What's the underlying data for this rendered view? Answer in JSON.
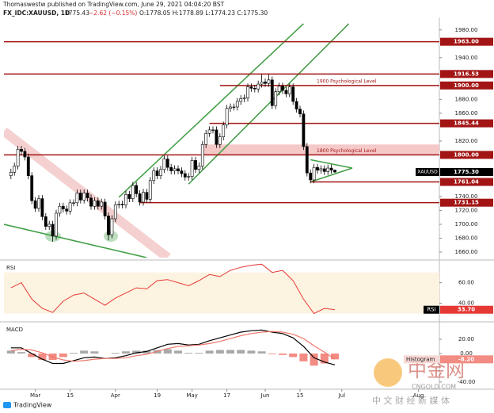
{
  "header": {
    "published": "Thomaswestw published on TradingView.com, June 29, 2021 04:04:20 BST",
    "symbol": "FX_IDC:XAUUSD, 1D",
    "price": "1775.43",
    "change": "−2.62 (−0.15%)",
    "ohlc": "O:1778.05 H:1778.89 L:1774.23 C:1775.30"
  },
  "footer": {
    "brand": "TradingView"
  },
  "watermark": {
    "logo": "中金网",
    "site": "CNGOLD.COM",
    "slogan": "中 文 财 经 新 媒 体"
  },
  "chart_data": [
    {
      "type": "candlestick",
      "xlim": [
        -2,
        123
      ],
      "ylim": [
        1652,
        1998
      ],
      "yticks": [
        {
          "value": 1980,
          "label": "1980.00"
        },
        {
          "value": 1940,
          "label": "1940.00"
        },
        {
          "value": 1880,
          "label": "1880.00"
        },
        {
          "value": 1860,
          "label": "1860.00"
        },
        {
          "value": 1820,
          "label": "1820.00"
        },
        {
          "value": 1740,
          "label": "1740.00"
        },
        {
          "value": 1720,
          "label": "1720.00"
        },
        {
          "value": 1700,
          "label": "1700.00"
        },
        {
          "value": 1680,
          "label": "1680.00"
        },
        {
          "value": 1660,
          "label": "1660.00"
        }
      ],
      "up_color": "#ffffff",
      "down_color": "#000000",
      "open": [
        1770,
        1775,
        1784,
        1808,
        1805,
        1797,
        1770,
        1734,
        1723,
        1737,
        1711,
        1697,
        1700,
        1683,
        1716,
        1726,
        1722,
        1719,
        1731,
        1731,
        1745,
        1735,
        1745,
        1738,
        1726,
        1734,
        1726,
        1732,
        1712,
        1685,
        1708,
        1728,
        1729,
        1728,
        1743,
        1737,
        1756,
        1744,
        1732,
        1746,
        1736,
        1763,
        1777,
        1770,
        1779,
        1794,
        1782,
        1777,
        1780,
        1777,
        1773,
        1768,
        1769,
        1792,
        1779,
        1784,
        1815,
        1831,
        1836,
        1836,
        1815,
        1826,
        1843,
        1867,
        1869,
        1869,
        1877,
        1881,
        1882,
        1898,
        1896,
        1895,
        1902,
        1905,
        1903,
        1908,
        1871,
        1891,
        1899,
        1893,
        1888,
        1898,
        1877,
        1866,
        1859,
        1812,
        1774,
        1764,
        1782,
        1778,
        1780,
        1776,
        1781,
        1778.05
      ],
      "high": [
        1780,
        1789,
        1813,
        1813,
        1810,
        1802,
        1775,
        1739,
        1742,
        1742,
        1716,
        1705,
        1705,
        1721,
        1731,
        1731,
        1727,
        1736,
        1736,
        1750,
        1750,
        1750,
        1750,
        1743,
        1739,
        1739,
        1737,
        1737,
        1717,
        1713,
        1733,
        1734,
        1734,
        1748,
        1748,
        1761,
        1761,
        1749,
        1751,
        1751,
        1768,
        1782,
        1782,
        1784,
        1799,
        1799,
        1787,
        1785,
        1785,
        1782,
        1778,
        1774,
        1797,
        1797,
        1789,
        1820,
        1836,
        1841,
        1841,
        1841,
        1831,
        1848,
        1872,
        1874,
        1874,
        1882,
        1886,
        1887,
        1903,
        1903,
        1901,
        1907,
        1916,
        1910,
        1916,
        1913,
        1896,
        1904,
        1904,
        1898,
        1903,
        1903,
        1882,
        1871,
        1864,
        1817,
        1779,
        1787,
        1787,
        1785,
        1785,
        1786,
        1786,
        1778.89
      ],
      "low": [
        1765,
        1770,
        1779,
        1800,
        1792,
        1765,
        1729,
        1718,
        1718,
        1706,
        1692,
        1692,
        1675,
        1678,
        1711,
        1717,
        1714,
        1714,
        1726,
        1726,
        1730,
        1730,
        1733,
        1721,
        1721,
        1721,
        1721,
        1707,
        1677,
        1680,
        1703,
        1723,
        1723,
        1723,
        1732,
        1732,
        1739,
        1727,
        1727,
        1731,
        1731,
        1758,
        1765,
        1765,
        1774,
        1777,
        1772,
        1772,
        1772,
        1768,
        1763,
        1763,
        1764,
        1774,
        1774,
        1779,
        1810,
        1826,
        1831,
        1810,
        1810,
        1821,
        1838,
        1862,
        1864,
        1864,
        1872,
        1876,
        1877,
        1891,
        1890,
        1890,
        1897,
        1898,
        1898,
        1866,
        1866,
        1886,
        1888,
        1883,
        1883,
        1872,
        1861,
        1854,
        1807,
        1769,
        1759,
        1759,
        1773,
        1773,
        1771,
        1771,
        1773,
        1774.23
      ],
      "close": [
        1775,
        1784,
        1808,
        1805,
        1797,
        1770,
        1734,
        1723,
        1737,
        1711,
        1697,
        1700,
        1683,
        1716,
        1726,
        1722,
        1719,
        1731,
        1731,
        1745,
        1735,
        1745,
        1738,
        1726,
        1734,
        1726,
        1732,
        1712,
        1685,
        1708,
        1728,
        1729,
        1728,
        1743,
        1737,
        1756,
        1744,
        1732,
        1746,
        1736,
        1763,
        1777,
        1770,
        1779,
        1794,
        1782,
        1777,
        1780,
        1777,
        1773,
        1768,
        1769,
        1792,
        1779,
        1784,
        1815,
        1831,
        1836,
        1836,
        1815,
        1826,
        1843,
        1867,
        1869,
        1869,
        1877,
        1881,
        1882,
        1898,
        1896,
        1895,
        1902,
        1905,
        1903,
        1908,
        1871,
        1891,
        1899,
        1893,
        1888,
        1898,
        1877,
        1866,
        1859,
        1812,
        1774,
        1764,
        1782,
        1778,
        1780,
        1776,
        1781,
        1778,
        1775.3
      ],
      "level_color": "#a31515",
      "levels": [
        {
          "value": 1963,
          "label": "1963.00",
          "start": -2
        },
        {
          "value": 1916.53,
          "label": "1916.53",
          "start": -2
        },
        {
          "value": 1900,
          "label": "1900.00",
          "start": 60,
          "note": "1900 Psychological Level"
        },
        {
          "value": 1845.44,
          "label": "1845.44",
          "start": 57
        },
        {
          "value": 1800,
          "label": "1800.00",
          "start": -2,
          "note": "1800 Psychological Level"
        },
        {
          "value": 1761.04,
          "label": "1761.04",
          "start": 86
        },
        {
          "value": 1731.15,
          "label": "1731.15",
          "start": 37
        }
      ],
      "zone": {
        "from": 1800,
        "to": 1815,
        "start": 55,
        "color": "#f6c9c9"
      },
      "trendlines": [
        {
          "x": [
            -2,
            45
          ],
          "y": [
            1834,
            1652
          ],
          "color": "#f2c4c4",
          "style": "band"
        },
        {
          "x": [
            31,
            84
          ],
          "y": [
            1739,
            1989
          ],
          "color": "#43a047"
        },
        {
          "x": [
            51,
            97
          ],
          "y": [
            1758,
            1989
          ],
          "color": "#43a047"
        },
        {
          "x": [
            -2,
            39
          ],
          "y": [
            1700,
            1652
          ],
          "color": "#43a047"
        },
        {
          "x": [
            86,
            98
          ],
          "y": [
            1793,
            1781
          ],
          "color": "#43a047"
        },
        {
          "x": [
            86,
            98
          ],
          "y": [
            1761,
            1781
          ],
          "color": "#43a047"
        }
      ],
      "last_price": {
        "symbol": "XAUUSD",
        "label": "1775.30"
      }
    },
    {
      "type": "line",
      "title": "RSI",
      "xlim": [
        -2,
        123
      ],
      "ylim": [
        25,
        79
      ],
      "yticks": [
        {
          "value": 60,
          "label": "60.00"
        },
        {
          "value": 40,
          "label": "40.00"
        }
      ],
      "band": [
        30,
        70
      ],
      "band_color": "#fdf3e1",
      "x": [
        0,
        3,
        6,
        9,
        12,
        15,
        18,
        21,
        24,
        27,
        30,
        33,
        36,
        39,
        42,
        45,
        48,
        51,
        54,
        57,
        60,
        63,
        66,
        69,
        72,
        75,
        78,
        81,
        84,
        87,
        90,
        93
      ],
      "series": [
        {
          "name": "RSI",
          "color": "#e53935",
          "values": [
            55,
            60,
            44,
            35,
            31,
            42,
            48,
            50,
            44,
            38,
            45,
            50,
            55,
            54,
            62,
            63,
            60,
            57,
            62,
            68,
            66,
            72,
            75,
            77,
            78,
            70,
            72,
            62,
            44,
            30,
            35,
            33.7
          ],
          "value_labels": [
            null,
            null,
            null,
            null,
            null,
            null,
            null,
            null,
            null,
            null,
            null,
            null,
            null,
            null,
            null,
            null,
            null,
            null,
            null,
            null,
            null,
            null,
            null,
            null,
            null,
            null,
            null,
            null,
            null,
            null,
            null,
            "33.70"
          ]
        }
      ]
    },
    {
      "type": "macd",
      "title": "MACD",
      "xlim": [
        -2,
        123
      ],
      "ylim": [
        -49,
        40
      ],
      "yticks": [
        {
          "value": 20,
          "label": "20.00"
        },
        {
          "value": 0,
          "label": "0.00"
        },
        {
          "value": -40,
          "label": "-40.00"
        }
      ],
      "xticks": [
        {
          "value": 7,
          "label": "Mar"
        },
        {
          "value": 17,
          "label": "15"
        },
        {
          "value": 30,
          "label": "Apr"
        },
        {
          "value": 42,
          "label": "19"
        },
        {
          "value": 52,
          "label": "May"
        },
        {
          "value": 62,
          "label": "17"
        },
        {
          "value": 73,
          "label": "Jun"
        },
        {
          "value": 83,
          "label": "15"
        },
        {
          "value": 95,
          "label": "Jul"
        },
        {
          "value": 117,
          "label": "Aug"
        }
      ],
      "x": [
        0,
        3,
        6,
        9,
        12,
        15,
        18,
        21,
        24,
        27,
        30,
        33,
        36,
        39,
        42,
        45,
        48,
        51,
        54,
        57,
        60,
        63,
        66,
        69,
        72,
        75,
        78,
        81,
        84,
        87,
        90,
        93
      ],
      "series": [
        {
          "name": "Histogram",
          "type": "bar",
          "color": "#a8a8a8",
          "negative_color": "#f28b82",
          "values": [
            4,
            2,
            -5,
            -9,
            -9,
            -5,
            1,
            4,
            3,
            0,
            1,
            3,
            4,
            4,
            5,
            6,
            4,
            1,
            1,
            4,
            5,
            5,
            5,
            4,
            3,
            -1,
            -2,
            -5,
            -11,
            -17,
            -14,
            -8.2
          ],
          "value_labels": [
            null,
            null,
            null,
            null,
            null,
            null,
            null,
            null,
            null,
            null,
            null,
            null,
            null,
            null,
            null,
            null,
            null,
            null,
            null,
            null,
            null,
            null,
            null,
            null,
            null,
            null,
            null,
            null,
            null,
            null,
            null,
            "-8.20"
          ]
        },
        {
          "type": "line",
          "color": "#000000",
          "values": [
            8,
            8,
            0,
            -8,
            -14,
            -14,
            -10,
            -6,
            -5,
            -7,
            -6,
            -3,
            1,
            3,
            8,
            13,
            14,
            12,
            13,
            18,
            22,
            26,
            30,
            32,
            33,
            30,
            28,
            22,
            10,
            -6,
            -12,
            -16
          ]
        },
        {
          "type": "line",
          "color": "#f0776b",
          "values": [
            4,
            6,
            5,
            1,
            -5,
            -9,
            -11,
            -10,
            -8,
            -7,
            -7,
            -6,
            -3,
            -1,
            3,
            7,
            10,
            11,
            12,
            14,
            17,
            21,
            25,
            28,
            30,
            31,
            30,
            27,
            21,
            11,
            2,
            -7.8
          ]
        }
      ]
    }
  ]
}
